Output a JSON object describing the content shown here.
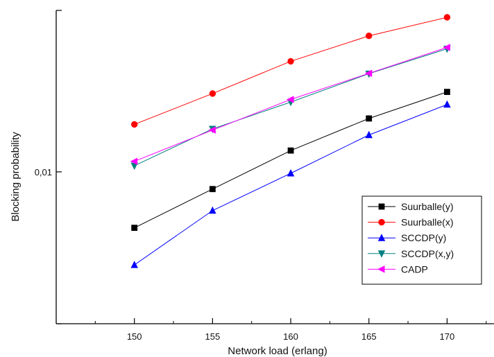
{
  "chart_data": {
    "type": "line",
    "title": "",
    "xlabel": "Network load (erlang)",
    "ylabel": "Blocking probability",
    "x": [
      150,
      155,
      160,
      165,
      170
    ],
    "x_ticks": [
      "150",
      "155",
      "160",
      "165",
      "170"
    ],
    "y_scale": "log",
    "y_tick_labels": [
      {
        "value": 0.01,
        "label": "0,01"
      }
    ],
    "xlim": [
      145,
      173
    ],
    "ylim": [
      0.00118,
      0.097
    ],
    "grid": false,
    "legend_position": "bottom-right",
    "series": [
      {
        "name": "Suurballe(y)",
        "color": "#000000",
        "marker": "square",
        "values": [
          0.00455,
          0.00785,
          0.0135,
          0.0212,
          0.0308
        ]
      },
      {
        "name": "Suurballe(x)",
        "color": "#ff0000",
        "marker": "circle",
        "values": [
          0.0195,
          0.0301,
          0.0474,
          0.0678,
          0.088
        ]
      },
      {
        "name": "SCCDP(y)",
        "color": "#0000ff",
        "marker": "triangle-up",
        "values": [
          0.0027,
          0.0058,
          0.0098,
          0.0168,
          0.0258
        ]
      },
      {
        "name": "SCCDP(x,y)",
        "color": "#008080",
        "marker": "triangle-down",
        "values": [
          0.0109,
          0.0183,
          0.0267,
          0.0398,
          0.0565
        ]
      },
      {
        "name": "CADP",
        "color": "#ff00ff",
        "marker": "triangle-left",
        "values": [
          0.0116,
          0.018,
          0.0277,
          0.04,
          0.0576
        ]
      }
    ]
  }
}
